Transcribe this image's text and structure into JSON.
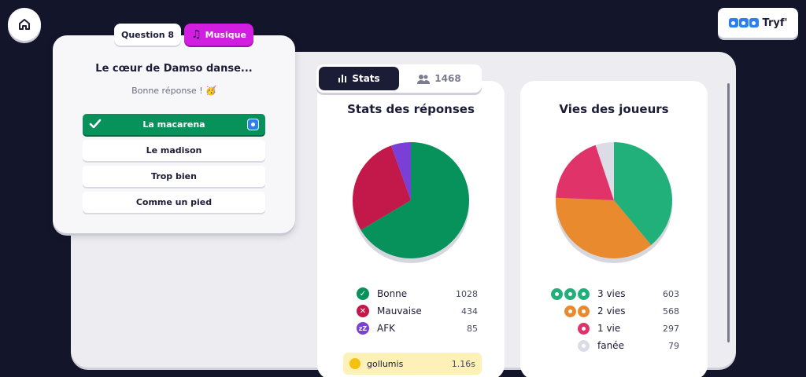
{
  "header": {
    "brand_name": "Tryf'"
  },
  "question": {
    "number_label": "Question 8",
    "category_label": "Musique",
    "title": "Le cœur de Damso danse...",
    "feedback": "Bonne réponse ! 🥳",
    "answers": [
      {
        "label": "La macarena",
        "correct": true
      },
      {
        "label": "Le madison",
        "correct": false
      },
      {
        "label": "Trop bien",
        "correct": false
      },
      {
        "label": "Comme un pied",
        "correct": false
      }
    ]
  },
  "tabs": {
    "stats_label": "Stats",
    "players_count": "1468"
  },
  "answer_stats": {
    "title": "Stats des réponses",
    "items": [
      {
        "label": "Bonne",
        "value": "1028",
        "color": "#07915b"
      },
      {
        "label": "Mauvaise",
        "value": "434",
        "color": "#c2184a"
      },
      {
        "label": "AFK",
        "value": "85",
        "color": "#7a3fd6"
      }
    ]
  },
  "life_stats": {
    "title": "Vies des joueurs",
    "items": [
      {
        "label": "3 vies",
        "value": "603",
        "color": "#22b07a"
      },
      {
        "label": "2 vies",
        "value": "568",
        "color": "#ea8a2e"
      },
      {
        "label": "1 vie",
        "value": "297",
        "color": "#e0336a"
      },
      {
        "label": "fanée",
        "value": "79",
        "color": "#dcdce6"
      }
    ]
  },
  "leaderboard": {
    "first_player_name": "gollumis",
    "first_player_time": "1.16s"
  },
  "chart_data": [
    {
      "type": "pie",
      "title": "Stats des réponses",
      "categories": [
        "Bonne",
        "Mauvaise",
        "AFK"
      ],
      "values": [
        1028,
        434,
        85
      ],
      "colors": [
        "#07915b",
        "#c2184a",
        "#7a3fd6"
      ]
    },
    {
      "type": "pie",
      "title": "Vies des joueurs",
      "categories": [
        "3 vies",
        "2 vies",
        "1 vie",
        "fanée"
      ],
      "values": [
        603,
        568,
        297,
        79
      ],
      "colors": [
        "#22b07a",
        "#ea8a2e",
        "#e0336a",
        "#dcdce6"
      ]
    }
  ]
}
